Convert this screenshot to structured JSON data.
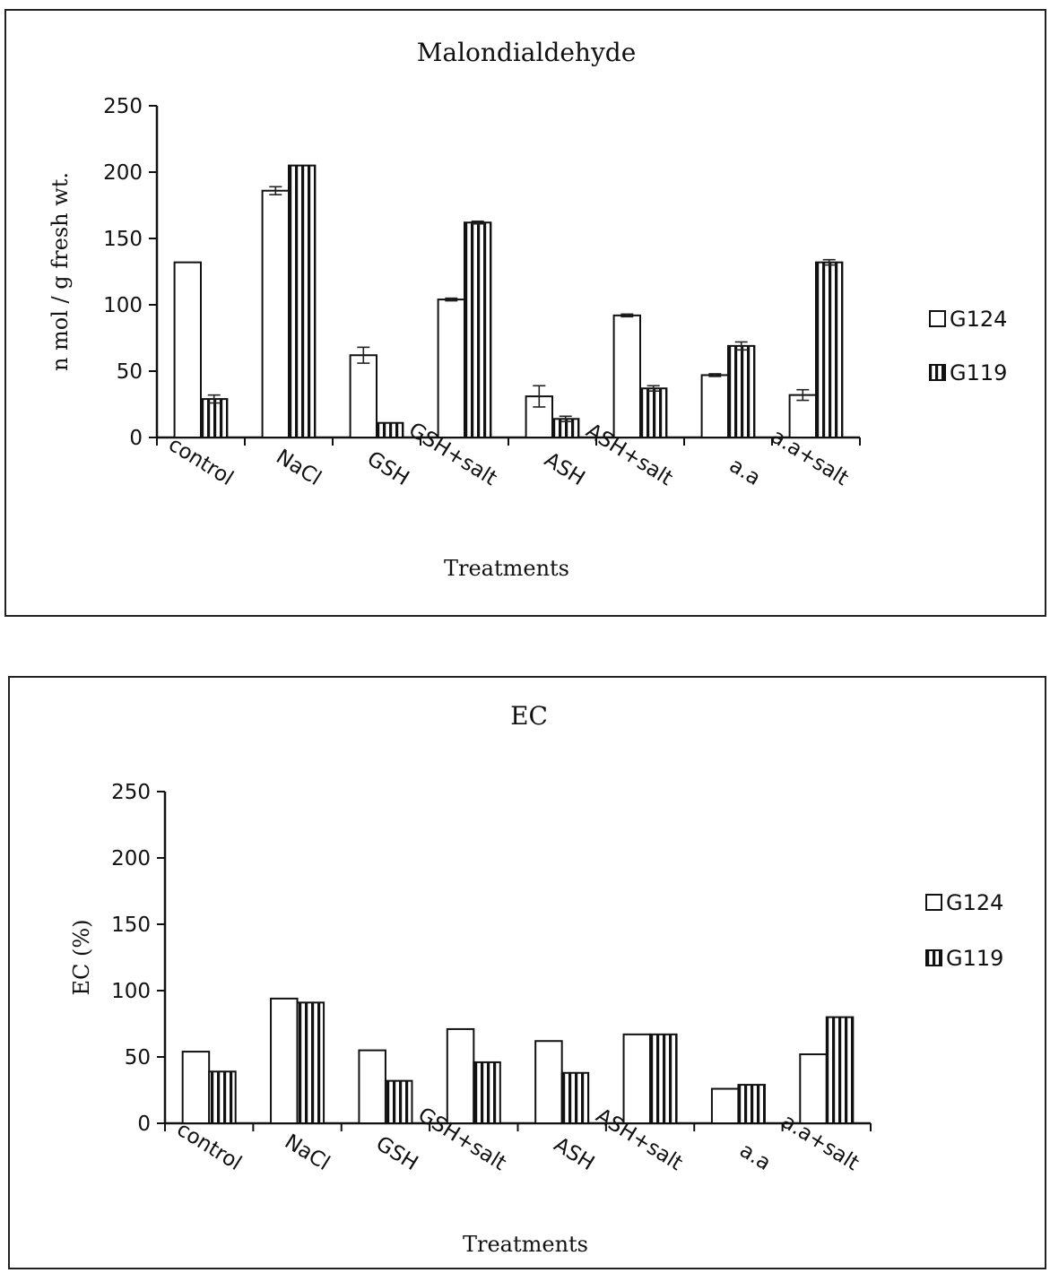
{
  "chart_data": [
    {
      "type": "bar",
      "title": "Malondialdehyde",
      "xlabel": "Treatments",
      "ylabel": "n mol / g fresh wt.",
      "ylim": [
        0,
        250
      ],
      "yticks": [
        0,
        50,
        100,
        150,
        200,
        250
      ],
      "categories": [
        "control",
        "NaCl",
        "GSH",
        "GSH+salt",
        "ASH",
        "ASH+salt",
        "a.a",
        "a.a+salt"
      ],
      "series": [
        {
          "name": "G124",
          "values": [
            132,
            186,
            62,
            104,
            31,
            92,
            47,
            32
          ],
          "errors": [
            0,
            3,
            6,
            1,
            8,
            1,
            1,
            4
          ]
        },
        {
          "name": "G119",
          "values": [
            29,
            205,
            11,
            162,
            14,
            37,
            69,
            132
          ],
          "errors": [
            3,
            0,
            0,
            1,
            2,
            2,
            3,
            2
          ]
        }
      ],
      "legend_position": "right",
      "colors": {
        "G124": "#ffffff",
        "G119": "hatched"
      }
    },
    {
      "type": "bar",
      "title": "EC",
      "xlabel": "Treatments",
      "ylabel": "EC (%)",
      "ylim": [
        0,
        250
      ],
      "yticks": [
        0,
        50,
        100,
        150,
        200,
        250
      ],
      "categories": [
        "control",
        "NaCl",
        "GSH",
        "GSH+salt",
        "ASH",
        "ASH+salt",
        "a.a",
        "a.a+salt"
      ],
      "series": [
        {
          "name": "G124",
          "values": [
            54,
            94,
            55,
            71,
            62,
            67,
            26,
            52
          ]
        },
        {
          "name": "G119",
          "values": [
            39,
            91,
            32,
            46,
            38,
            67,
            29,
            80
          ]
        }
      ],
      "legend_position": "right",
      "colors": {
        "G124": "#ffffff",
        "G119": "hatched"
      }
    }
  ]
}
